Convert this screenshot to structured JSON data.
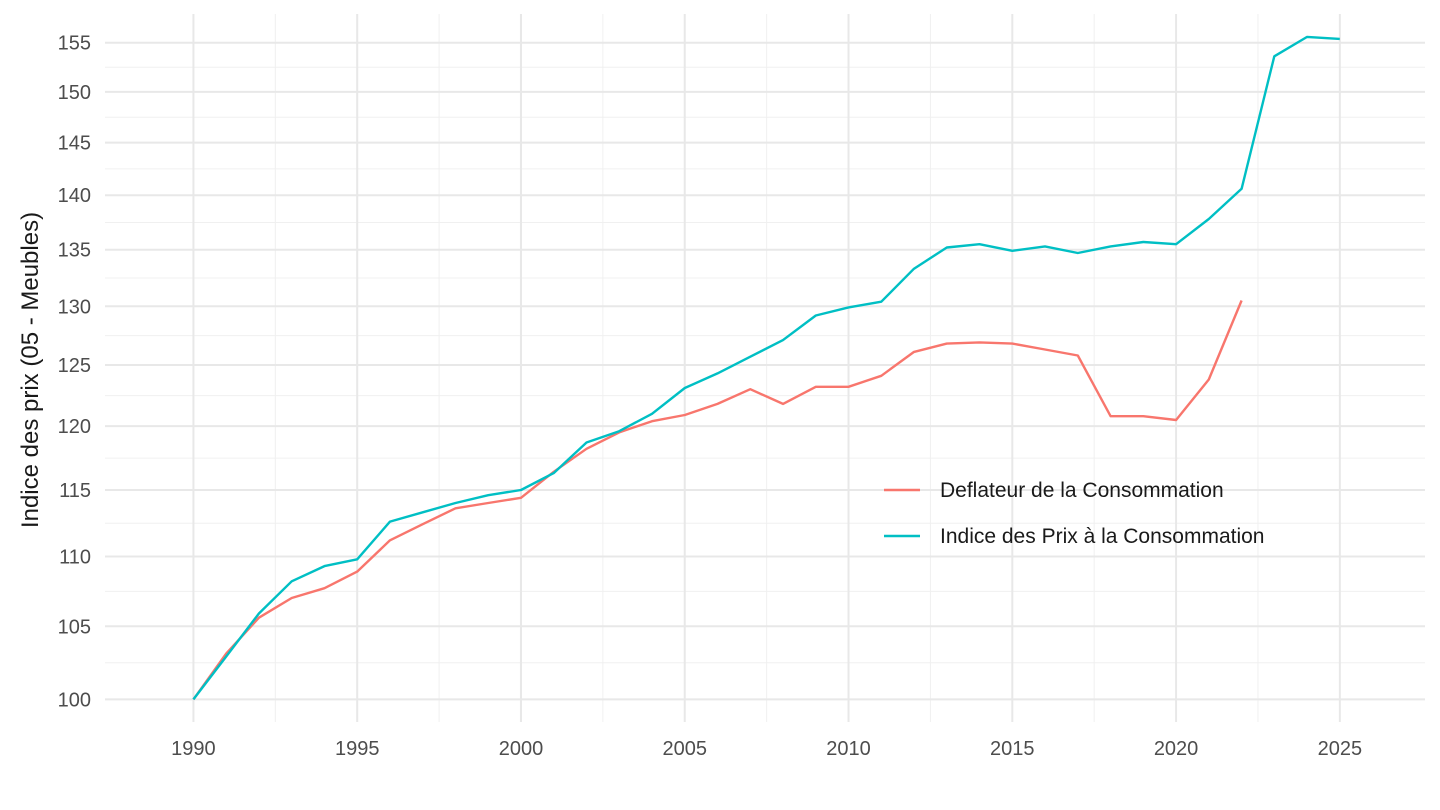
{
  "chart_data": {
    "type": "line",
    "ylabel": "Indice des prix (05 - Meubles)",
    "xlabel": "",
    "y_scale": "log",
    "xlim": [
      1987.3,
      2027.6
    ],
    "ylim": [
      98.5,
      158
    ],
    "x_ticks": [
      1990,
      1995,
      2000,
      2005,
      2010,
      2015,
      2020,
      2025
    ],
    "y_ticks": [
      100,
      105,
      110,
      115,
      120,
      125,
      130,
      135,
      140,
      145,
      150,
      155
    ],
    "grid": true,
    "legend_position": "inside-right",
    "series": [
      {
        "name": "Deflateur de la Consommation",
        "color": "#F8766D",
        "x": [
          1990,
          1991,
          1992,
          1993,
          1994,
          1995,
          1996,
          1997,
          1998,
          1999,
          2000,
          2001,
          2002,
          2003,
          2004,
          2005,
          2006,
          2007,
          2008,
          2009,
          2010,
          2011,
          2012,
          2013,
          2014,
          2015,
          2016,
          2017,
          2018,
          2019,
          2020,
          2021,
          2022
        ],
        "y": [
          100,
          103.1,
          105.6,
          107,
          107.7,
          108.9,
          111.2,
          112.4,
          113.6,
          114,
          114.4,
          116.4,
          118.2,
          119.5,
          120.4,
          120.9,
          121.8,
          123,
          121.8,
          123.2,
          123.2,
          124.1,
          126.1,
          126.8,
          126.9,
          126.8,
          126.3,
          125.8,
          120.8,
          120.8,
          120.5,
          123.8,
          130.5
        ]
      },
      {
        "name": "Indice des Prix à la Consommation",
        "color": "#00BFC4",
        "x": [
          1990,
          1991,
          1992,
          1993,
          1994,
          1995,
          1996,
          1997,
          1998,
          1999,
          2000,
          2001,
          2002,
          2003,
          2004,
          2005,
          2006,
          2007,
          2008,
          2009,
          2010,
          2011,
          2012,
          2013,
          2014,
          2015,
          2016,
          2017,
          2018,
          2019,
          2020,
          2021,
          2022,
          2023,
          2024,
          2025
        ],
        "y": [
          100,
          102.9,
          105.9,
          108.2,
          109.3,
          109.8,
          112.6,
          113.3,
          114,
          114.6,
          115,
          116.3,
          118.7,
          119.6,
          121,
          123.1,
          124.3,
          125.7,
          127.1,
          129.2,
          129.9,
          130.4,
          133.3,
          135.2,
          135.5,
          134.9,
          135.3,
          134.7,
          135.3,
          135.7,
          135.5,
          137.8,
          140.6,
          153.6,
          155.6,
          155.4
        ]
      }
    ]
  }
}
